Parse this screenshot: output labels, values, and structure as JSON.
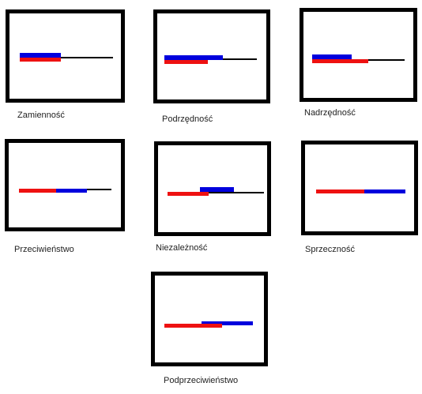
{
  "colors": {
    "frame": "#000000",
    "axis": "#000000",
    "red": "#ee1111",
    "blue": "#0000dd"
  },
  "relations": [
    {
      "key": "zamiennosc",
      "label": "Zamienność"
    },
    {
      "key": "podrzednosc",
      "label": "Podrzędność"
    },
    {
      "key": "nadrzednosc",
      "label": "Nadrzędność"
    },
    {
      "key": "przeciwienstwo",
      "label": "Przeciwieństwo"
    },
    {
      "key": "niezaleznosc",
      "label": "Niezależność"
    },
    {
      "key": "sprzecznosc",
      "label": "Sprzeczność"
    },
    {
      "key": "podprzeciwienstwo",
      "label": "Podprzeciwieństwo"
    }
  ]
}
